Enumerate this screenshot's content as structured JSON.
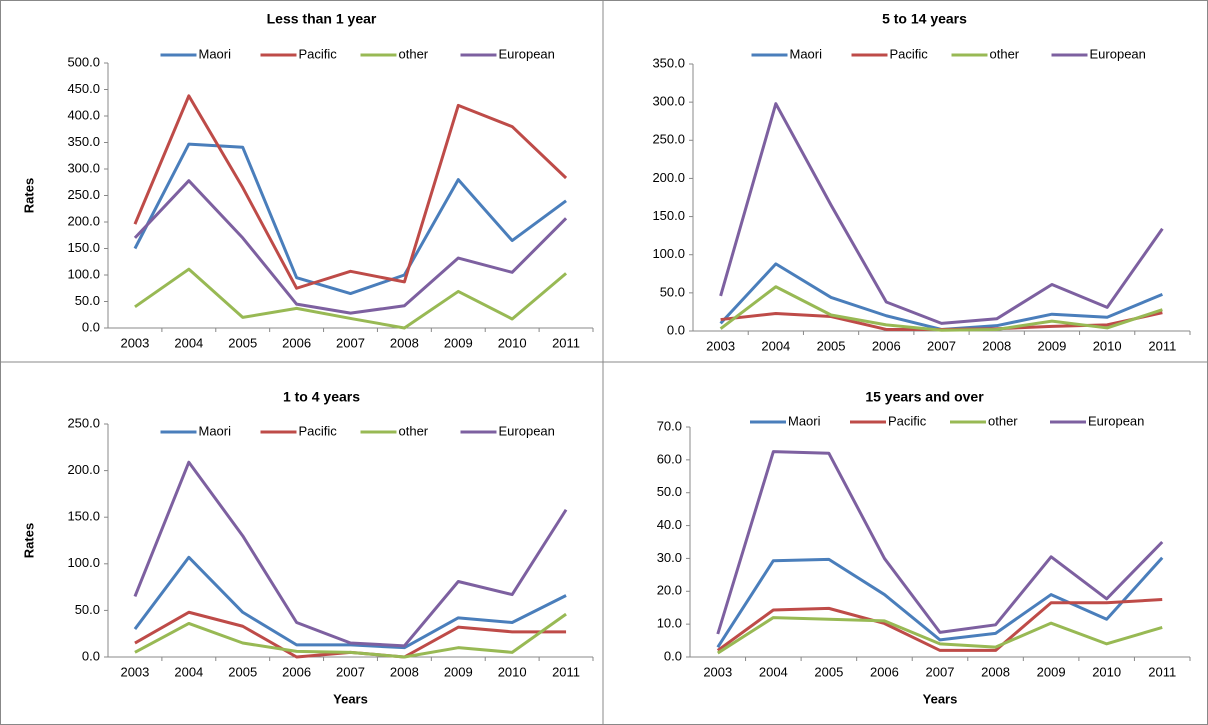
{
  "chart_data": [
    {
      "type": "line",
      "title": "Less than 1 year",
      "ylabel": "Rates",
      "categories": [
        "2003",
        "2004",
        "2005",
        "2006",
        "2007",
        "2008",
        "2009",
        "2010",
        "2011"
      ],
      "ylim": [
        0,
        500
      ],
      "yticks": [
        {
          "value": 0,
          "label": "0.0"
        },
        {
          "value": 50,
          "label": "50.0"
        },
        {
          "value": 100,
          "label": "100.0"
        },
        {
          "value": 150,
          "label": "150.0"
        },
        {
          "value": 200,
          "label": "200.0"
        },
        {
          "value": 250,
          "label": "250.0"
        },
        {
          "value": 300,
          "label": "300.0"
        },
        {
          "value": 350,
          "label": "350.0"
        },
        {
          "value": 400,
          "label": "400.0"
        },
        {
          "value": 450,
          "label": "450.0"
        },
        {
          "value": 500,
          "label": "500.0"
        }
      ],
      "series": [
        {
          "name": "Maori",
          "color": "#4a7ebb",
          "values": [
            150,
            347,
            341,
            95,
            65,
            100,
            280,
            165,
            240
          ]
        },
        {
          "name": "Pacific",
          "color": "#be4b48",
          "values": [
            196,
            438,
            265,
            75,
            107,
            87,
            420,
            380,
            283
          ]
        },
        {
          "name": "other",
          "color": "#98b954",
          "values": [
            40,
            111,
            20,
            37,
            18,
            0,
            69,
            17,
            103
          ]
        },
        {
          "name": "European",
          "color": "#7d60a0",
          "values": [
            170,
            278,
            170,
            45,
            28,
            42,
            132,
            105,
            207
          ]
        }
      ]
    },
    {
      "type": "line",
      "title": "5 to 14 years",
      "categories": [
        "2003",
        "2004",
        "2005",
        "2006",
        "2007",
        "2008",
        "2009",
        "2010",
        "2011"
      ],
      "ylim": [
        0,
        350
      ],
      "yticks": [
        {
          "value": 0,
          "label": "0.0"
        },
        {
          "value": 50,
          "label": "50.0"
        },
        {
          "value": 100,
          "label": "100.0"
        },
        {
          "value": 150,
          "label": "150.0"
        },
        {
          "value": 200,
          "label": "200.0"
        },
        {
          "value": 250,
          "label": "250.0"
        },
        {
          "value": 300,
          "label": "300.0"
        },
        {
          "value": 350,
          "label": "350.0"
        }
      ],
      "series": [
        {
          "name": "Maori",
          "color": "#4a7ebb",
          "values": [
            10,
            88,
            44,
            20,
            2,
            7,
            22,
            18,
            48
          ]
        },
        {
          "name": "Pacific",
          "color": "#be4b48",
          "values": [
            15,
            23,
            19,
            2,
            2,
            3,
            6,
            8,
            24
          ]
        },
        {
          "name": "other",
          "color": "#98b954",
          "values": [
            3,
            58,
            21,
            8,
            1,
            2,
            13,
            4,
            28
          ]
        },
        {
          "name": "European",
          "color": "#7d60a0",
          "values": [
            46,
            298,
            165,
            38,
            10,
            16,
            61,
            31,
            134
          ]
        }
      ]
    },
    {
      "type": "line",
      "title": "1 to 4 years",
      "ylabel": "Rates",
      "xlabel": "Years",
      "categories": [
        "2003",
        "2004",
        "2005",
        "2006",
        "2007",
        "2008",
        "2009",
        "2010",
        "2011"
      ],
      "ylim": [
        0,
        250
      ],
      "yticks": [
        {
          "value": 0,
          "label": "0.0"
        },
        {
          "value": 50,
          "label": "50.0"
        },
        {
          "value": 100,
          "label": "100.0"
        },
        {
          "value": 150,
          "label": "150.0"
        },
        {
          "value": 200,
          "label": "200.0"
        },
        {
          "value": 250,
          "label": "250.0"
        }
      ],
      "series": [
        {
          "name": "Maori",
          "color": "#4a7ebb",
          "values": [
            30,
            107,
            48,
            13,
            13,
            10,
            42,
            37,
            66
          ]
        },
        {
          "name": "Pacific",
          "color": "#be4b48",
          "values": [
            15,
            48,
            33,
            0,
            5,
            0,
            32,
            27,
            27
          ]
        },
        {
          "name": "other",
          "color": "#98b954",
          "values": [
            5,
            36,
            15,
            6,
            5,
            0,
            10,
            5,
            46
          ]
        },
        {
          "name": "European",
          "color": "#7d60a0",
          "values": [
            65,
            209,
            130,
            37,
            15,
            12,
            81,
            67,
            158
          ]
        }
      ]
    },
    {
      "type": "line",
      "title": "15 years and over",
      "xlabel": "Years",
      "categories": [
        "2003",
        "2004",
        "2005",
        "2006",
        "2007",
        "2008",
        "2009",
        "2010",
        "2011"
      ],
      "ylim": [
        0,
        70
      ],
      "yticks": [
        {
          "value": 0,
          "label": "0.0"
        },
        {
          "value": 10,
          "label": "10.0"
        },
        {
          "value": 20,
          "label": "20.0"
        },
        {
          "value": 30,
          "label": "30.0"
        },
        {
          "value": 40,
          "label": "40.0"
        },
        {
          "value": 50,
          "label": "50.0"
        },
        {
          "value": 60,
          "label": "60.0"
        },
        {
          "value": 70,
          "label": "70.0"
        }
      ],
      "series": [
        {
          "name": "Maori",
          "color": "#4a7ebb",
          "values": [
            3,
            29.3,
            29.7,
            19,
            5.2,
            7.2,
            19,
            11.5,
            30.2
          ]
        },
        {
          "name": "Pacific",
          "color": "#be4b48",
          "values": [
            2,
            14.3,
            14.8,
            10.2,
            2,
            2,
            16.5,
            16.5,
            17.5
          ]
        },
        {
          "name": "other",
          "color": "#98b954",
          "values": [
            1.2,
            12,
            11.5,
            11,
            4,
            3,
            10.3,
            4,
            9
          ]
        },
        {
          "name": "European",
          "color": "#7d60a0",
          "values": [
            7,
            62.5,
            62,
            30,
            7.5,
            9.8,
            30.5,
            17.7,
            35
          ]
        }
      ]
    }
  ]
}
